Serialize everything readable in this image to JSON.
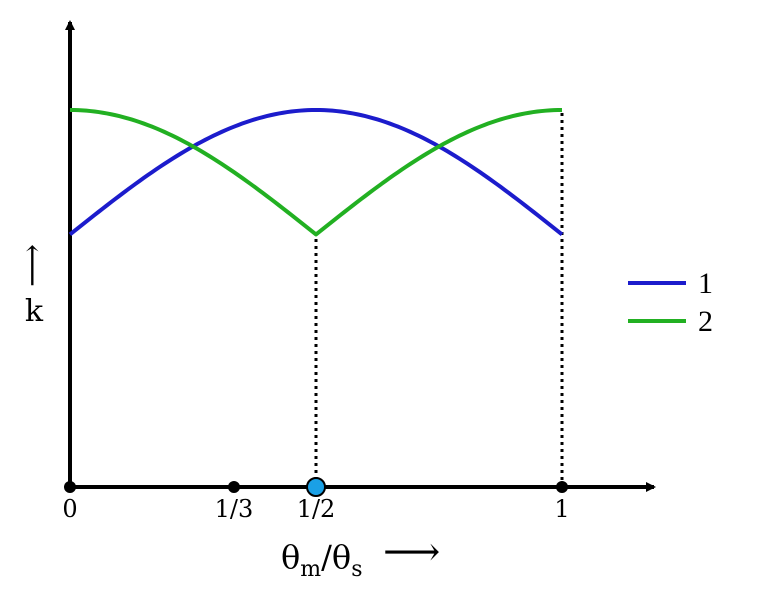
{
  "chart_data": {
    "type": "line",
    "x_label_main": "θ",
    "x_label_sub1": "m",
    "x_label_slash": "/θ",
    "x_label_sub2": "s",
    "x_label_arrow": "⟶",
    "y_label": "k",
    "y_arrow": "⟶",
    "xlim": [
      0,
      1.15
    ],
    "ylim": [
      0,
      1.35
    ],
    "x_ticks": [
      {
        "value": 0,
        "label": "0"
      },
      {
        "value": 0.3333,
        "label": "1/3"
      },
      {
        "value": 0.5,
        "label": "1/2"
      },
      {
        "value": 1,
        "label": "1"
      }
    ],
    "highlight_point": {
      "x": 0.5,
      "color": "#1aa0e6"
    },
    "series": [
      {
        "name": "1",
        "color": "#1c1ccc",
        "x": [
          0,
          0.0625,
          0.125,
          0.1875,
          0.25,
          0.3125,
          0.375,
          0.4375,
          0.5,
          0.5625,
          0.625,
          0.6875,
          0.75,
          0.8125,
          0.875,
          0.9375,
          1
        ],
        "y": [
          0.67,
          0.75,
          0.818,
          0.875,
          0.922,
          0.959,
          0.985,
          1.0,
          1.0,
          1.0,
          0.985,
          0.959,
          0.922,
          0.875,
          0.818,
          0.75,
          0.67
        ]
      },
      {
        "name": "2",
        "color": "#22b022",
        "x": [
          0,
          0.0625,
          0.125,
          0.1875,
          0.25,
          0.3125,
          0.375,
          0.4375,
          0.5,
          0.5625,
          0.625,
          0.6875,
          0.75,
          0.8125,
          0.875,
          0.9375,
          1
        ],
        "y": [
          1.0,
          0.985,
          0.959,
          0.922,
          0.875,
          0.818,
          0.75,
          0.67,
          0.67,
          0.75,
          0.818,
          0.875,
          0.922,
          0.959,
          0.985,
          1.0,
          1.0
        ]
      }
    ],
    "legend": {
      "placement": "right"
    },
    "grid": false
  }
}
